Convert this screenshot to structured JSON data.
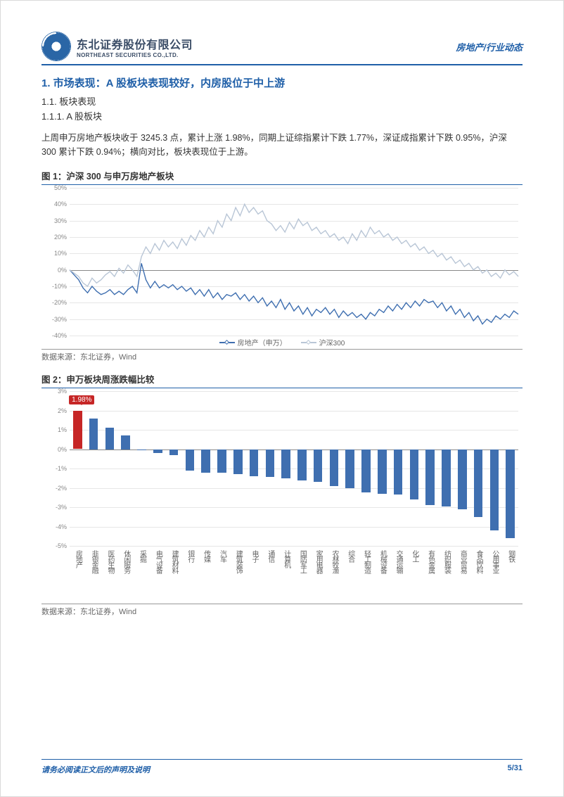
{
  "header": {
    "company_cn": "东北证券股份有限公司",
    "company_en": "NORTHEAST SECURITIES CO.,LTD.",
    "right_text": "房地产/行业动态"
  },
  "section": {
    "h1": "1.  市场表现：A 股板块表现较好，内房股位于中上游",
    "h2": "1.1.  板块表现",
    "h3": "1.1.1.  A 股板块",
    "para": "上周申万房地产板块收于 3245.3 点，累计上涨 1.98%，同期上证综指累计下跌 1.77%，深证成指累计下跌 0.95%，沪深 300 累计下跌 0.94%；横向对比，板块表现位于上游。"
  },
  "chart1": {
    "title": "图 1：沪深 300 与申万房地产板块",
    "source": "数据来源：东北证券，Wind",
    "type": "line",
    "ylim": [
      -40,
      50
    ],
    "ytick_step": 10,
    "grid_color": "#e6e6e6",
    "legend": [
      {
        "label": "房地产（申万）",
        "color": "#3f6fb0"
      },
      {
        "label": "沪深300",
        "color": "#b9c6d6"
      }
    ],
    "series": [
      {
        "name": "房地产（申万）",
        "color": "#3f6fb0",
        "width": 1.4,
        "values": [
          0,
          -3,
          -6,
          -11,
          -14,
          -10,
          -13,
          -15,
          -14,
          -12,
          -15,
          -13,
          -15,
          -12,
          -10,
          -14,
          4,
          -6,
          -11,
          -7,
          -11,
          -9,
          -11,
          -9,
          -12,
          -10,
          -13,
          -11,
          -15,
          -12,
          -16,
          -12,
          -17,
          -14,
          -18,
          -15,
          -16,
          -14,
          -18,
          -15,
          -19,
          -16,
          -20,
          -17,
          -22,
          -19,
          -23,
          -18,
          -24,
          -20,
          -25,
          -22,
          -27,
          -23,
          -28,
          -24,
          -26,
          -23,
          -27,
          -24,
          -29,
          -25,
          -28,
          -26,
          -29,
          -27,
          -30,
          -26,
          -28,
          -24,
          -26,
          -22,
          -25,
          -21,
          -24,
          -20,
          -23,
          -19,
          -22,
          -18,
          -20,
          -19,
          -23,
          -20,
          -25,
          -22,
          -27,
          -24,
          -29,
          -26,
          -31,
          -28,
          -33,
          -30,
          -32,
          -28,
          -30,
          -27,
          -29,
          -25,
          -27
        ]
      },
      {
        "name": "沪深300",
        "color": "#b9c6d6",
        "width": 1.4,
        "values": [
          0,
          -2,
          -4,
          -8,
          -10,
          -5,
          -8,
          -6,
          -3,
          -1,
          -4,
          1,
          -2,
          3,
          0,
          -4,
          8,
          14,
          10,
          16,
          12,
          18,
          14,
          17,
          13,
          19,
          15,
          21,
          18,
          24,
          20,
          26,
          22,
          30,
          26,
          34,
          30,
          38,
          33,
          40,
          35,
          38,
          34,
          36,
          30,
          28,
          24,
          27,
          23,
          29,
          25,
          31,
          27,
          29,
          24,
          26,
          22,
          24,
          20,
          22,
          18,
          20,
          16,
          22,
          18,
          24,
          20,
          26,
          22,
          24,
          20,
          22,
          18,
          20,
          16,
          18,
          14,
          16,
          12,
          14,
          10,
          12,
          8,
          10,
          6,
          8,
          4,
          6,
          2,
          4,
          0,
          2,
          -2,
          0,
          -4,
          -2,
          -5,
          0,
          -3,
          -1,
          -4
        ]
      }
    ]
  },
  "chart2": {
    "title": "图 2：申万板块周涨跌幅比较",
    "source": "数据来源：东北证券，Wind",
    "type": "bar",
    "ylim": [
      -5,
      3
    ],
    "ytick_step": 1,
    "highlight_index": 0,
    "highlight_color": "#c62626",
    "highlight_label": "1.98%",
    "bar_color": "#3f6fb0",
    "bar_width_ratio": 0.55,
    "grid_color": "#e6e6e6",
    "categories": [
      "房地产",
      "非银金融",
      "医药生物",
      "休闲服务",
      "采掘",
      "电气设备",
      "建筑材料",
      "银行",
      "传媒",
      "汽车",
      "建筑装饰",
      "电子",
      "通信",
      "计算机",
      "国防军工",
      "家用电器",
      "农林牧渔",
      "综合",
      "轻工制造",
      "机械设备",
      "交通运输",
      "化工",
      "有色金属",
      "纺织服装",
      "商业贸易",
      "食品饮料",
      "公用事业",
      "钢铁"
    ],
    "values": [
      1.98,
      1.6,
      1.1,
      0.7,
      0.0,
      -0.2,
      -0.3,
      -1.1,
      -1.2,
      -1.2,
      -1.3,
      -1.4,
      -1.45,
      -1.5,
      -1.6,
      -1.7,
      -1.9,
      -2.0,
      -2.25,
      -2.3,
      -2.35,
      -2.6,
      -2.9,
      -2.95,
      -3.1,
      -3.5,
      -4.2,
      -4.6
    ]
  },
  "footer": {
    "left": "请务必阅读正文后的声明及说明",
    "right": "5/31"
  }
}
